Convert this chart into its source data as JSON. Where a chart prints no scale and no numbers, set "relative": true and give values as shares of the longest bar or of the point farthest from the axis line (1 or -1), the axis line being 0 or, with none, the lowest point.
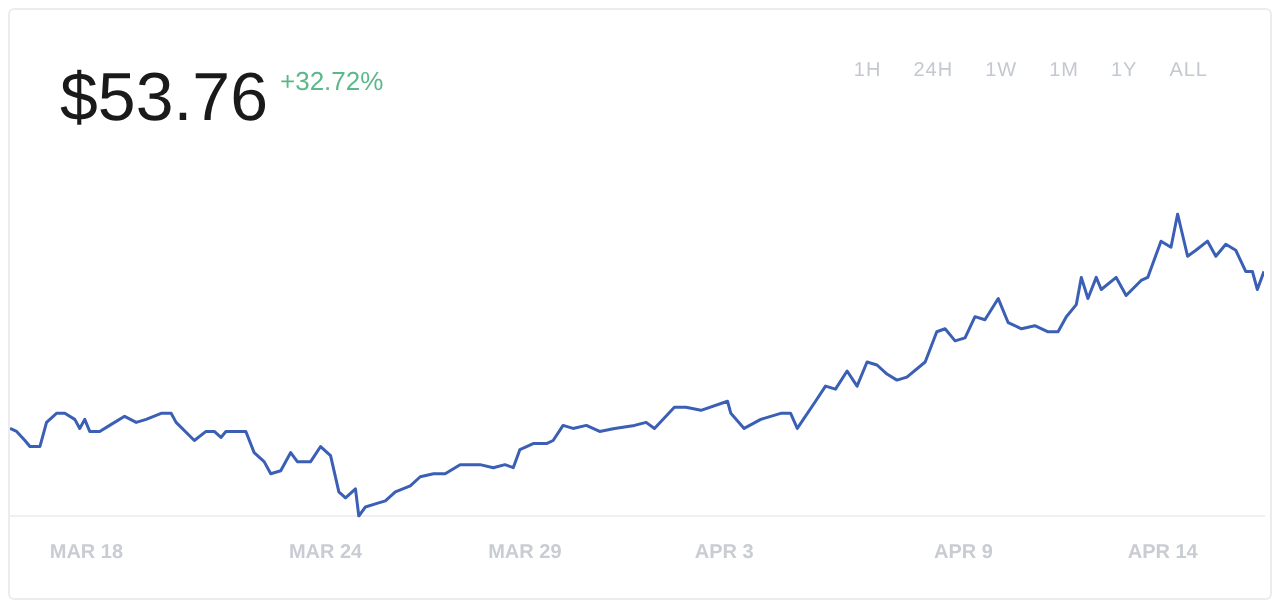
{
  "chart_data": {
    "type": "line",
    "title": "$53.76",
    "subtitle": "+32.72%",
    "annotations": [
      "1H",
      "24H",
      "1W",
      "1M",
      "1Y",
      "ALL"
    ],
    "relative": true,
    "grid": false,
    "legend": false,
    "marker": "none",
    "line_style": "solid",
    "xlim": [
      "--03-16T02:00",
      "--04-16T13:00"
    ],
    "xticks": [
      {
        "value": "--03-18",
        "label": "MAR 18"
      },
      {
        "value": "--03-24",
        "label": "MAR 24"
      },
      {
        "value": "--03-29",
        "label": "MAR 29"
      },
      {
        "value": "--04-03",
        "label": "APR 3"
      },
      {
        "value": "--04-09",
        "label": "APR 9"
      },
      {
        "value": "--04-14",
        "label": "APR 14"
      }
    ],
    "series": [
      {
        "color": "#3a5fb5",
        "x": [
          "--03-16T02:00",
          "--03-16T06:00",
          "--03-16T11:00",
          "--03-16T14:00",
          "--03-16T20:00",
          "--03-17T00:00",
          "--03-17T06:00",
          "--03-17T11:00",
          "--03-17T17:00",
          "--03-17T20:00",
          "--03-17T23:00",
          "--03-18T02:00",
          "--03-18T08:00",
          "--03-18T14:00",
          "--03-18T23:00",
          "--03-19T06:00",
          "--03-19T12:00",
          "--03-19T21:00",
          "--03-20T03:00",
          "--03-20T06:00",
          "--03-20T17:00",
          "--03-21T00:00",
          "--03-21T05:00",
          "--03-21T09:00",
          "--03-21T12:00",
          "--03-22T00:00",
          "--03-22T05:00",
          "--03-22T11:00",
          "--03-22T15:00",
          "--03-22T21:00",
          "--03-23T03:00",
          "--03-23T07:00",
          "--03-23T15:00",
          "--03-23T21:00",
          "--03-24T03:00",
          "--03-24T08:00",
          "--03-24T12:00",
          "--03-24T18:00",
          "--03-24T20:00",
          "--03-25T00:00",
          "--03-25T06:00",
          "--03-25T12:00",
          "--03-25T18:00",
          "--03-26T03:00",
          "--03-26T09:00",
          "--03-26T17:00",
          "--03-27T00:00",
          "--03-27T09:00",
          "--03-27T21:00",
          "--03-28T05:00",
          "--03-28T12:00",
          "--03-28T17:00",
          "--03-28T21:00",
          "--03-29T05:00",
          "--03-29T13:00",
          "--03-29T17:00",
          "--03-29T23:00",
          "--03-30T05:00",
          "--03-30T13:00",
          "--03-30T21:00",
          "--03-31T06:00",
          "--03-31T18:00",
          "--04-01T01:00",
          "--04-01T06:00",
          "--04-01T18:00",
          "--04-02T01:00",
          "--04-02T10:00",
          "--04-03T02:00",
          "--04-03T04:00",
          "--04-03T12:00",
          "--04-03T22:00",
          "--04-04T10:00",
          "--04-04T16:00",
          "--04-04T20:00",
          "--04-05T07:00",
          "--04-05T13:00",
          "--04-05T19:00",
          "--04-06T02:00",
          "--04-06T08:00",
          "--04-06T14:00",
          "--04-06T20:00",
          "--04-07T02:00",
          "--04-07T08:00",
          "--04-07T14:00",
          "--04-08T01:00",
          "--04-08T08:00",
          "--04-08T13:00",
          "--04-08T19:00",
          "--04-09T01:00",
          "--04-09T07:00",
          "--04-09T13:00",
          "--04-09T21:00",
          "--04-10T03:00",
          "--04-10T11:00",
          "--04-10T19:00",
          "--04-11T03:00",
          "--04-11T09:00",
          "--04-11T14:00",
          "--04-11T20:00",
          "--04-11T23:00",
          "--04-12T03:00",
          "--04-12T08:00",
          "--04-12T11:00",
          "--04-12T20:00",
          "--04-13T02:00",
          "--04-13T11:00",
          "--04-13T15:00",
          "--04-13T23:00",
          "--04-14T05:00",
          "--04-14T09:00",
          "--04-14T15:00",
          "--04-14T20:00",
          "--04-15T03:00",
          "--04-15T08:00",
          "--04-15T14:00",
          "--04-15T20:00",
          "--04-16T02:00",
          "--04-16T06:00",
          "--04-16T09:00",
          "--04-16T13:00"
        ],
        "values": [
          0.29,
          0.28,
          0.25,
          0.23,
          0.23,
          0.31,
          0.34,
          0.34,
          0.32,
          0.29,
          0.32,
          0.28,
          0.28,
          0.3,
          0.33,
          0.31,
          0.32,
          0.34,
          0.34,
          0.31,
          0.25,
          0.28,
          0.28,
          0.26,
          0.28,
          0.28,
          0.21,
          0.18,
          0.14,
          0.15,
          0.21,
          0.18,
          0.18,
          0.23,
          0.2,
          0.08,
          0.06,
          0.09,
          0,
          0.03,
          0.04,
          0.05,
          0.08,
          0.1,
          0.13,
          0.14,
          0.14,
          0.17,
          0.17,
          0.16,
          0.17,
          0.16,
          0.22,
          0.24,
          0.24,
          0.25,
          0.3,
          0.29,
          0.3,
          0.28,
          0.29,
          0.3,
          0.31,
          0.29,
          0.36,
          0.36,
          0.35,
          0.38,
          0.34,
          0.29,
          0.32,
          0.34,
          0.34,
          0.29,
          0.38,
          0.43,
          0.42,
          0.48,
          0.43,
          0.51,
          0.5,
          0.47,
          0.45,
          0.46,
          0.51,
          0.61,
          0.62,
          0.58,
          0.59,
          0.66,
          0.65,
          0.72,
          0.64,
          0.62,
          0.63,
          0.61,
          0.61,
          0.66,
          0.7,
          0.79,
          0.72,
          0.79,
          0.75,
          0.79,
          0.73,
          0.78,
          0.79,
          0.91,
          0.89,
          1,
          0.86,
          0.88,
          0.91,
          0.86,
          0.9,
          0.88,
          0.81,
          0.81,
          0.75,
          0.81
        ]
      }
    ]
  }
}
